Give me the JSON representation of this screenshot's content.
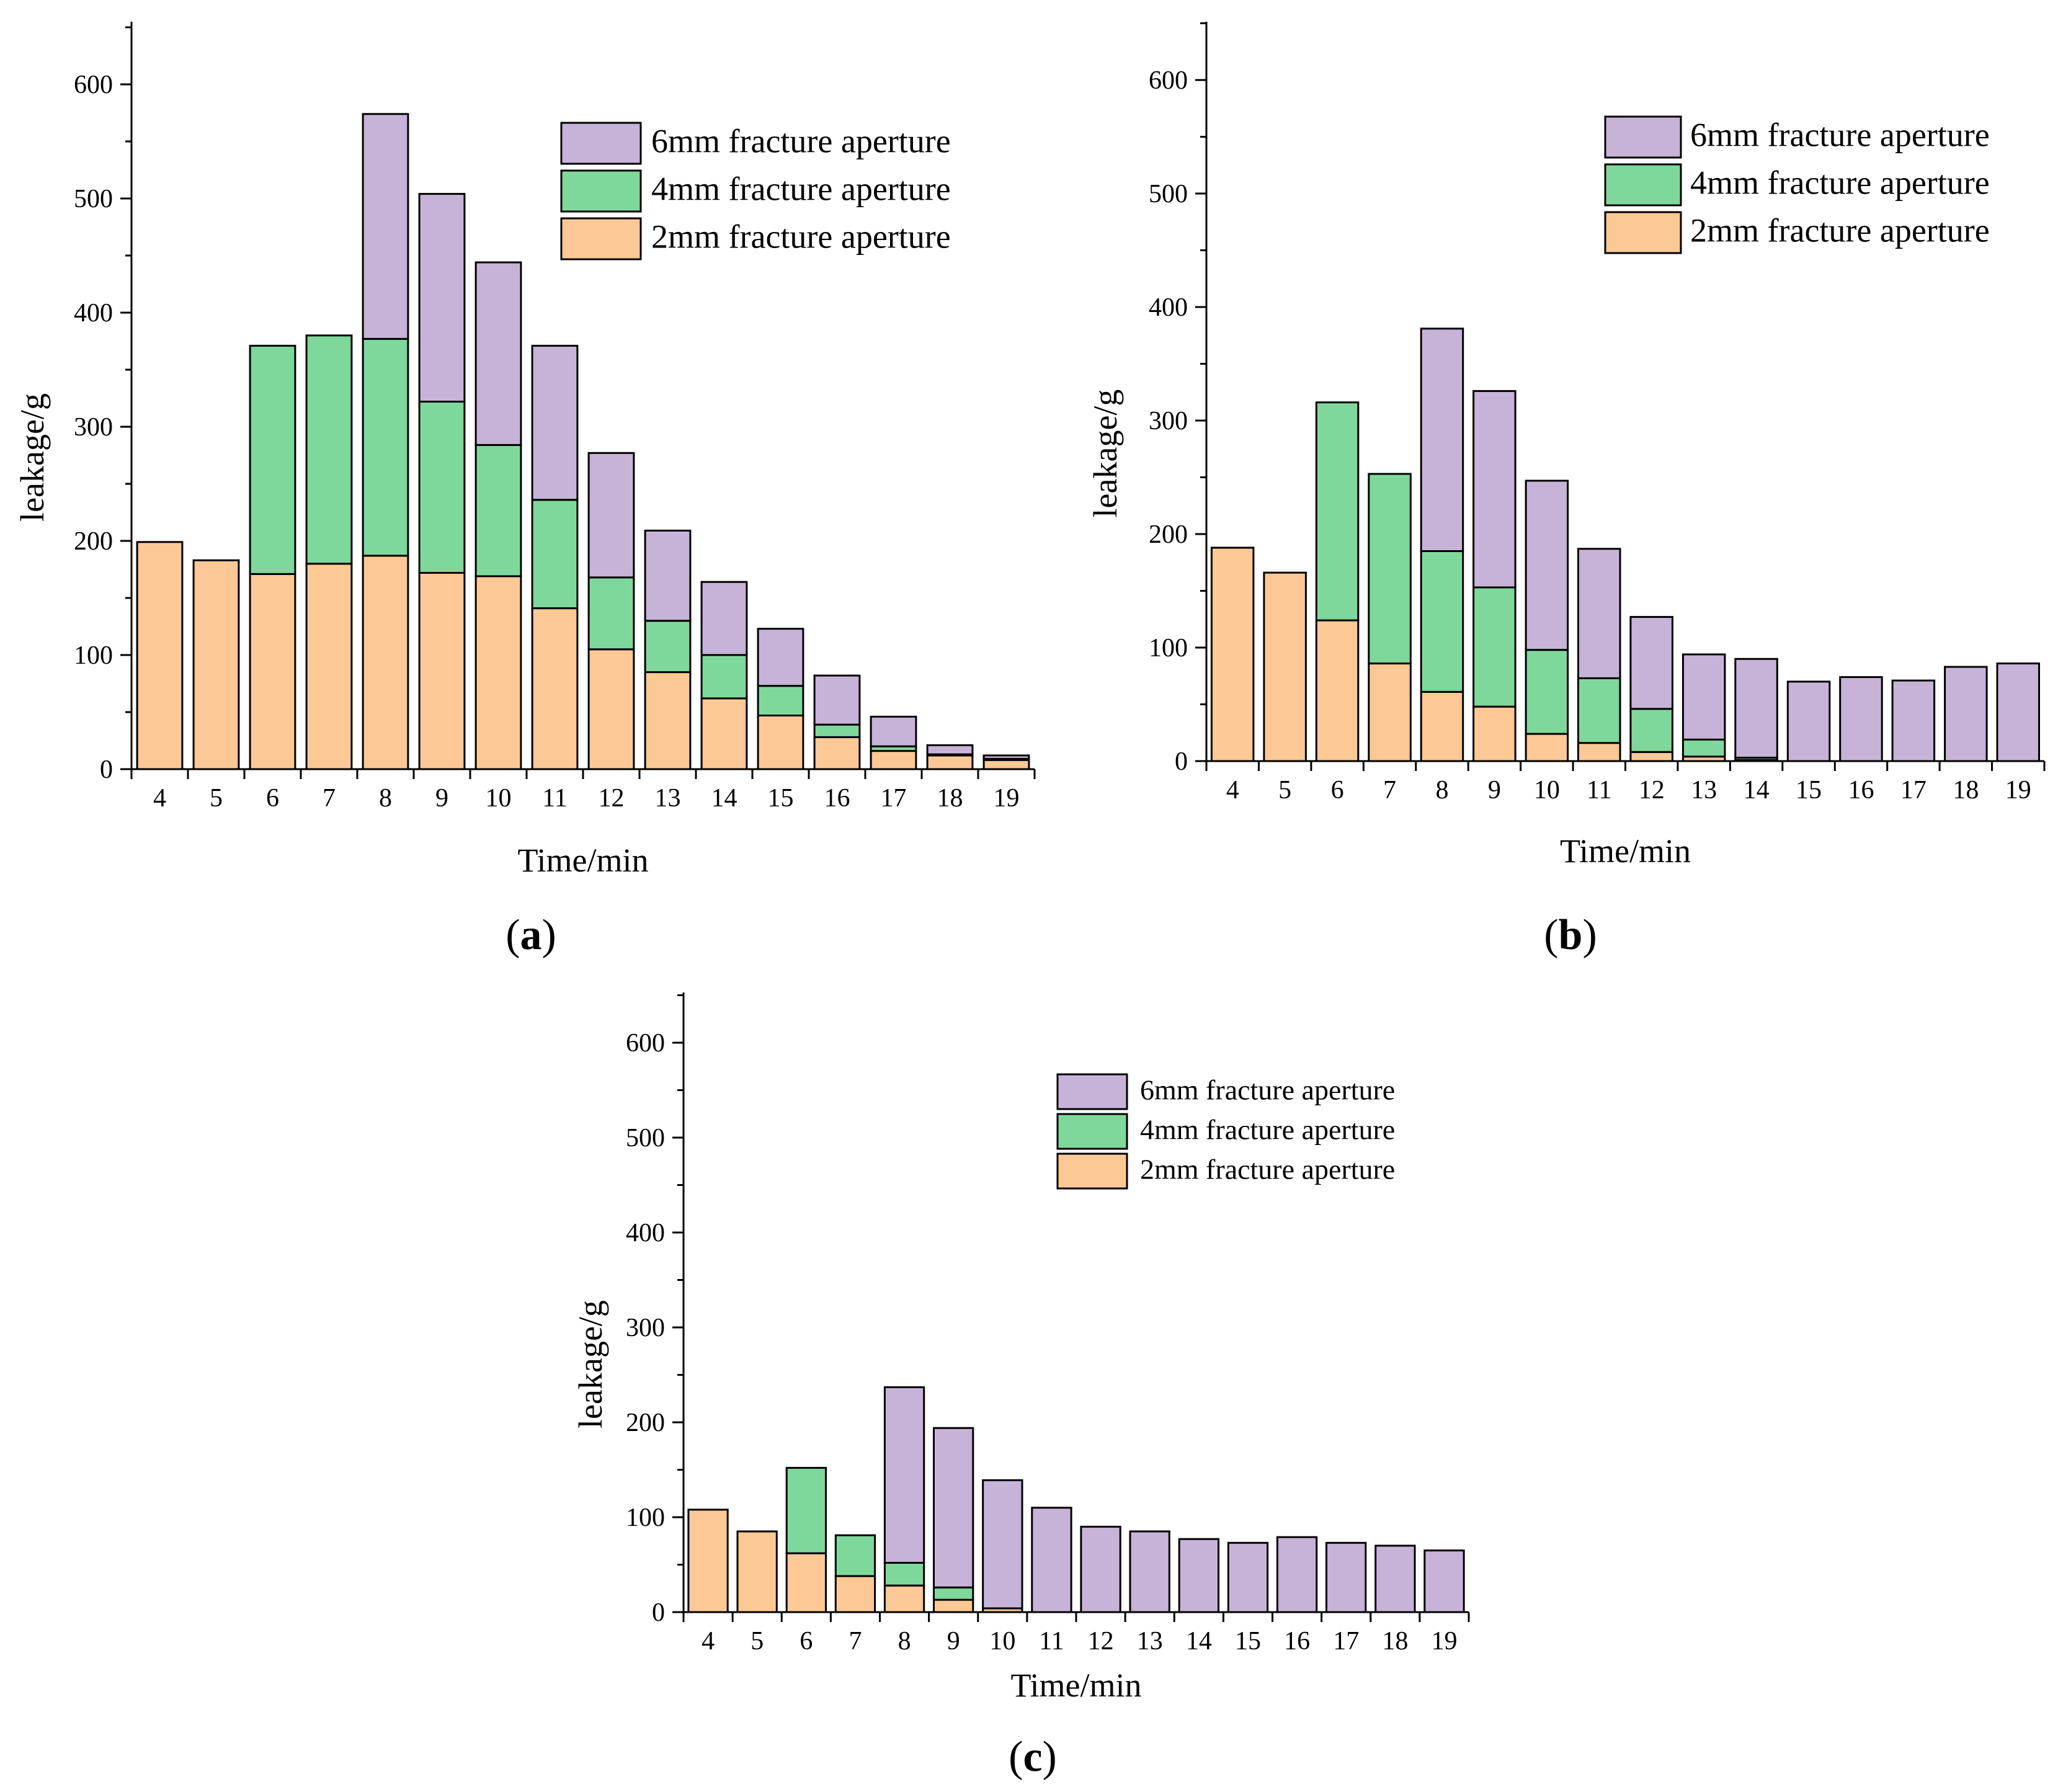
{
  "figure": {
    "panels": [
      {
        "label_open": "(",
        "label_letter": "a",
        "label_close": ")"
      },
      {
        "label_open": "(",
        "label_letter": "b",
        "label_close": ")"
      },
      {
        "label_open": "(",
        "label_letter": "c",
        "label_close": ")"
      }
    ]
  },
  "colors": {
    "6mm": "#c7b3d8",
    "4mm": "#7fd89b",
    "2mm": "#fcc896",
    "stroke": "#000000"
  },
  "chart_data": [
    {
      "type": "bar",
      "stacked": true,
      "panel": "a",
      "title": "",
      "xlabel": "Time/min",
      "ylabel": "leakage/g",
      "ylim": [
        0,
        650
      ],
      "yticks": [
        0,
        100,
        200,
        300,
        400,
        500,
        600
      ],
      "legend_position": "top-right",
      "categories": [
        "4",
        "5",
        "6",
        "7",
        "8",
        "9",
        "10",
        "11",
        "12",
        "13",
        "14",
        "15",
        "16",
        "17",
        "18",
        "19"
      ],
      "series": [
        {
          "name": "2mm fracture aperture",
          "key": "2mm",
          "values": [
            199,
            183,
            171,
            180,
            187,
            172,
            169,
            141,
            105,
            85,
            62,
            47,
            28,
            16,
            12,
            8
          ]
        },
        {
          "name": "4mm fracture aperture",
          "key": "4mm",
          "values": [
            0,
            0,
            200,
            200,
            190,
            150,
            115,
            95,
            63,
            45,
            38,
            26,
            11,
            4,
            1,
            1
          ]
        },
        {
          "name": "6mm fracture aperture",
          "key": "6mm",
          "values": [
            0,
            0,
            0,
            0,
            197,
            182,
            160,
            135,
            109,
            79,
            64,
            50,
            43,
            26,
            8,
            3
          ]
        }
      ]
    },
    {
      "type": "bar",
      "stacked": true,
      "panel": "b",
      "title": "",
      "xlabel": "Time/min",
      "ylabel": "leakage/g",
      "ylim": [
        0,
        650
      ],
      "yticks": [
        0,
        100,
        200,
        300,
        400,
        500,
        600
      ],
      "legend_position": "top-right",
      "categories": [
        "4",
        "5",
        "6",
        "7",
        "8",
        "9",
        "10",
        "11",
        "12",
        "13",
        "14",
        "15",
        "16",
        "17",
        "18",
        "19"
      ],
      "series": [
        {
          "name": "2mm fracture aperture",
          "key": "2mm",
          "values": [
            188,
            166,
            124,
            86,
            61,
            48,
            24,
            16,
            8,
            4,
            1,
            0,
            0,
            0,
            0,
            0
          ]
        },
        {
          "name": "4mm fracture aperture",
          "key": "4mm",
          "values": [
            0,
            0,
            192,
            167,
            124,
            105,
            74,
            57,
            38,
            15,
            2,
            0,
            0,
            0,
            0,
            0
          ]
        },
        {
          "name": "6mm fracture aperture",
          "key": "6mm",
          "values": [
            0,
            0,
            0,
            0,
            196,
            173,
            149,
            114,
            81,
            75,
            87,
            70,
            74,
            71,
            83,
            86
          ]
        }
      ]
    },
    {
      "type": "bar",
      "stacked": true,
      "panel": "c",
      "title": "",
      "xlabel": "Time/min",
      "ylabel": "leakage/g",
      "ylim": [
        0,
        650
      ],
      "yticks": [
        0,
        100,
        200,
        300,
        400,
        500,
        600
      ],
      "legend_position": "top-right",
      "categories": [
        "4",
        "5",
        "6",
        "7",
        "8",
        "9",
        "10",
        "11",
        "12",
        "13",
        "14",
        "15",
        "16",
        "17",
        "18",
        "19"
      ],
      "series": [
        {
          "name": "2mm fracture aperture",
          "key": "2mm",
          "values": [
            108,
            85,
            62,
            38,
            28,
            13,
            4,
            0,
            0,
            0,
            0,
            0,
            0,
            0,
            0,
            0
          ]
        },
        {
          "name": "4mm fracture aperture",
          "key": "4mm",
          "values": [
            0,
            0,
            90,
            43,
            24,
            13,
            0,
            0,
            0,
            0,
            0,
            0,
            0,
            0,
            0,
            0
          ]
        },
        {
          "name": "6mm fracture aperture",
          "key": "6mm",
          "values": [
            0,
            0,
            0,
            0,
            185,
            168,
            135,
            110,
            90,
            85,
            77,
            73,
            79,
            73,
            70,
            65
          ]
        }
      ]
    }
  ]
}
